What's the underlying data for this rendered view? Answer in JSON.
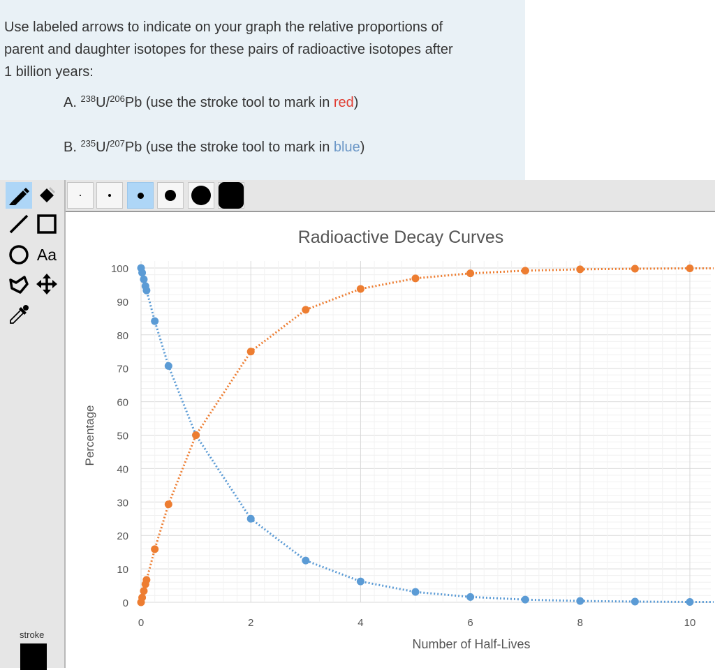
{
  "question": {
    "intro_line1": "Use labeled arrows to indicate on your graph the relative proportions of",
    "intro_line2": "parent and daughter isotopes for these pairs of radioactive isotopes after",
    "intro_line3": "1 billion years:",
    "item_a": {
      "prefix": "A. ",
      "parent_mass": "238",
      "parent_symbol": "U/",
      "daughter_mass": "206",
      "daughter_symbol": "Pb",
      "instruction": " (use the stroke tool to mark in ",
      "color_word": "red",
      "close": ")"
    },
    "item_b": {
      "prefix": "B. ",
      "parent_mass": "235",
      "parent_symbol": "U/",
      "daughter_mass": "207",
      "daughter_symbol": "Pb",
      "instruction": " (use the stroke tool to mark in ",
      "color_word": "blue",
      "close": ")"
    },
    "colors": {
      "red_word": "#e03c31",
      "blue_word": "#6b97c7"
    }
  },
  "tools": {
    "items": [
      {
        "name": "pencil-icon",
        "selected": true
      },
      {
        "name": "eraser-icon",
        "selected": false
      },
      {
        "name": "line-icon",
        "selected": false
      },
      {
        "name": "rectangle-icon",
        "selected": false
      },
      {
        "name": "circle-icon",
        "selected": false
      },
      {
        "name": "text-icon",
        "label": "Aa",
        "selected": false
      },
      {
        "name": "polygon-icon",
        "selected": false
      },
      {
        "name": "move-icon",
        "selected": false
      },
      {
        "name": "eyedropper-icon",
        "selected": false
      }
    ],
    "stroke_label": "stroke",
    "stroke_color": "#000000"
  },
  "sizes": {
    "options": [
      "size-1",
      "size-2",
      "size-3",
      "size-4",
      "size-5",
      "size-6"
    ],
    "selected_index": 2
  },
  "chart_data": {
    "type": "scatter",
    "title": "Radioactive Decay Curves",
    "xlabel": "Number of Half-Lives",
    "ylabel": "Percentage",
    "xlim": [
      0,
      10
    ],
    "ylim": [
      0,
      100
    ],
    "xticks": [
      "0",
      "2",
      "4",
      "6",
      "8",
      "10"
    ],
    "yticks": [
      "0",
      "10",
      "20",
      "30",
      "40",
      "50",
      "60",
      "70",
      "80",
      "90",
      "100"
    ],
    "grid": true,
    "legend": "none",
    "series": [
      {
        "color": "#5b9bd5",
        "x": [
          0,
          0.02,
          0.05,
          0.08,
          0.1,
          0.25,
          0.5,
          1,
          2,
          3,
          4,
          5,
          6,
          7,
          8,
          9,
          10
        ],
        "y": [
          100,
          98.6,
          96.6,
          94.6,
          93.3,
          84.1,
          70.7,
          50,
          25,
          12.5,
          6.25,
          3.1,
          1.6,
          0.8,
          0.4,
          0.2,
          0.1
        ]
      },
      {
        "color": "#ed7d31",
        "x": [
          0,
          0.02,
          0.05,
          0.08,
          0.1,
          0.25,
          0.5,
          1,
          2,
          3,
          4,
          5,
          6,
          7,
          8,
          9,
          10
        ],
        "y": [
          0,
          1.4,
          3.4,
          5.4,
          6.7,
          15.9,
          29.3,
          50,
          75,
          87.5,
          93.75,
          96.9,
          98.4,
          99.2,
          99.6,
          99.8,
          99.9
        ]
      }
    ]
  }
}
